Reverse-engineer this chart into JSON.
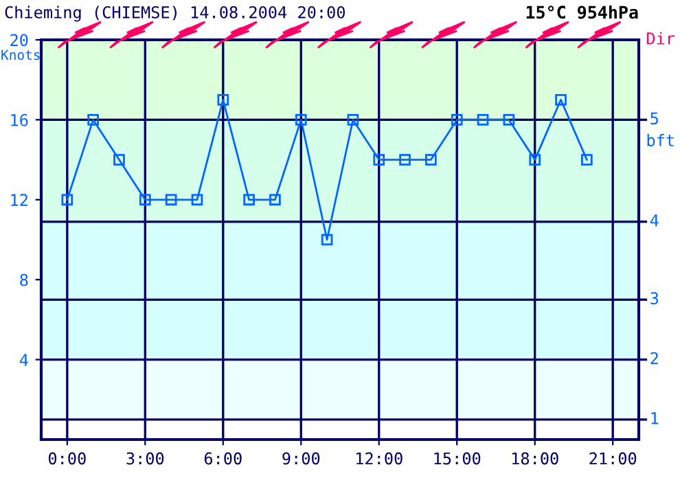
{
  "chart_data": {
    "type": "line",
    "title": "Chieming (CHIEMSE) 14.08.2004 20:00",
    "subtitle": "15°C 954hPa",
    "ylabel": "Knots",
    "y2label": "bft",
    "annotations": [
      "Dir",
      "1",
      "2",
      "3",
      "4",
      "5"
    ],
    "x": [
      0,
      1,
      2,
      3,
      4,
      5,
      6,
      7,
      8,
      9,
      10,
      11,
      12,
      13,
      14,
      15,
      16,
      17,
      18,
      19,
      20
    ],
    "series": [
      {
        "color": "#0066ff",
        "values": [
          12,
          16,
          14,
          12,
          12,
          12,
          17,
          12,
          12,
          16,
          10,
          16,
          14,
          14,
          14,
          16,
          16,
          16,
          14,
          17,
          14
        ]
      }
    ],
    "xlim": [
      -1,
      22
    ],
    "xticks": [
      {
        "value": 0,
        "label": "0:00"
      },
      {
        "value": 3,
        "label": "3:00"
      },
      {
        "value": 6,
        "label": "6:00"
      },
      {
        "value": 9,
        "label": "9:00"
      },
      {
        "value": 12,
        "label": "12:00"
      },
      {
        "value": 15,
        "label": "15:00"
      },
      {
        "value": 18,
        "label": "18:00"
      },
      {
        "value": 21,
        "label": "21:00"
      }
    ],
    "ylim": [
      0,
      20
    ],
    "yticks": [
      4,
      8,
      12,
      16,
      20
    ],
    "bands": [
      {
        "axis": "y",
        "from": 1,
        "to": 4,
        "color": "#eeffff"
      },
      {
        "axis": "y",
        "from": 4,
        "to": 10.9,
        "color": "#d5ffff"
      },
      {
        "axis": "y",
        "from": 10.9,
        "to": 16,
        "color": "#d5ffea"
      },
      {
        "axis": "y",
        "from": 16,
        "to": 20,
        "color": "#dcffdc"
      }
    ],
    "ref_lines": [
      {
        "axis": "y",
        "value": 1,
        "color": "#000066"
      },
      {
        "axis": "y",
        "value": 4,
        "color": "#000066"
      },
      {
        "axis": "y",
        "value": 7,
        "color": "#000066"
      },
      {
        "axis": "y",
        "value": 10.9,
        "color": "#000066"
      },
      {
        "axis": "y",
        "value": 16,
        "color": "#000066"
      }
    ],
    "grid": "x",
    "marker": "square",
    "line_style": "solid",
    "legend": false
  }
}
